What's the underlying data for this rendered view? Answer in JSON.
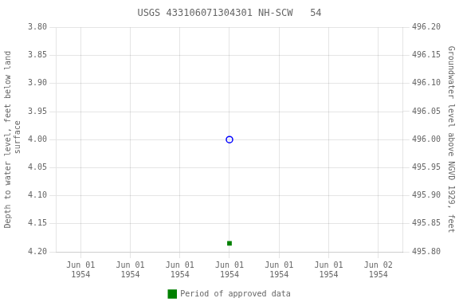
{
  "chart_data": {
    "type": "scatter",
    "title": "USGS 433106071304301 NH-SCW   54",
    "ylabel": "Depth to water level, feet below land\n surface",
    "y2label": "Groundwater level above NGVD 1929, feet",
    "categories": [
      "Jun 01\n1954",
      "Jun 01\n1954",
      "Jun 01\n1954",
      "Jun 01\n1954",
      "Jun 01\n1954",
      "Jun 01\n1954",
      "Jun 02\n1954"
    ],
    "series": [
      {
        "color": "blue",
        "marker": "open_circle",
        "values": [
          null,
          null,
          null,
          4.0,
          null,
          null,
          null
        ]
      },
      {
        "name": "Period of approved data",
        "color": "#008000",
        "marker": "square",
        "values": [
          null,
          null,
          null,
          4.185,
          null,
          null,
          null
        ]
      }
    ],
    "ylim": [
      4.2,
      3.8
    ],
    "yticks": [
      {
        "value": 3.8,
        "label": "3.80"
      },
      {
        "value": 3.85,
        "label": "3.85"
      },
      {
        "value": 3.9,
        "label": "3.90"
      },
      {
        "value": 3.95,
        "label": "3.95"
      },
      {
        "value": 4.0,
        "label": "4.00"
      },
      {
        "value": 4.05,
        "label": "4.05"
      },
      {
        "value": 4.1,
        "label": "4.10"
      },
      {
        "value": 4.15,
        "label": "4.15"
      },
      {
        "value": 4.2,
        "label": "4.20"
      }
    ],
    "y2lim": [
      495.8,
      496.2
    ],
    "y2ticks": [
      {
        "value": 495.8,
        "label": "495.80"
      },
      {
        "value": 495.85,
        "label": "495.85"
      },
      {
        "value": 495.9,
        "label": "495.90"
      },
      {
        "value": 495.95,
        "label": "495.95"
      },
      {
        "value": 496.0,
        "label": "496.00"
      },
      {
        "value": 496.05,
        "label": "496.05"
      },
      {
        "value": 496.1,
        "label": "496.10"
      },
      {
        "value": 496.15,
        "label": "496.15"
      },
      {
        "value": 496.2,
        "label": "496.20"
      }
    ],
    "grid": true,
    "legend": "bottom"
  }
}
